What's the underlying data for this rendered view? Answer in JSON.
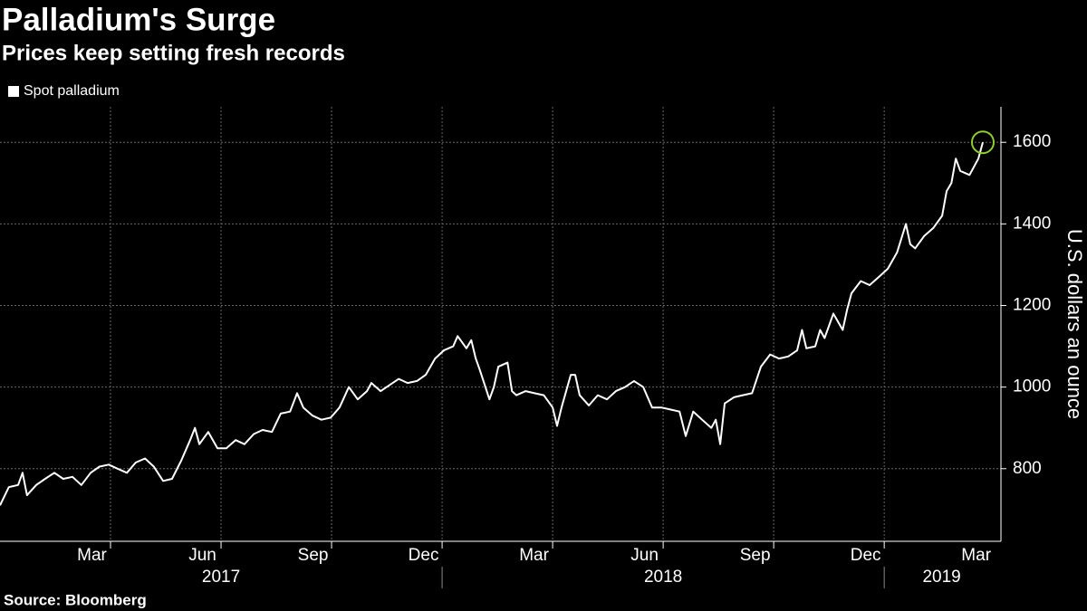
{
  "chart_data": {
    "type": "line",
    "title": "Palladium's Surge",
    "subtitle": "Prices keep setting fresh records",
    "y_axis_label": "U.S. dollars an ounce",
    "source": "Source: Bloomberg",
    "legend_position": "top-left",
    "grid": true,
    "marker_color": "#8fce2d",
    "xlim": [
      2017,
      2019.264
    ],
    "ylim": [
      622,
      1687
    ],
    "yticks": [
      800,
      1000,
      1200,
      1400,
      1600
    ],
    "xticks": [
      {
        "value": 2017.208,
        "label": "Mar"
      },
      {
        "value": 2017.458,
        "label": "Jun"
      },
      {
        "value": 2017.708,
        "label": "Sep"
      },
      {
        "value": 2017.958,
        "label": "Dec"
      },
      {
        "value": 2018.208,
        "label": "Mar"
      },
      {
        "value": 2018.458,
        "label": "Jun"
      },
      {
        "value": 2018.708,
        "label": "Sep"
      },
      {
        "value": 2018.958,
        "label": "Dec"
      },
      {
        "value": 2019.208,
        "label": "Mar"
      }
    ],
    "xgrid": [
      2017.25,
      2017.5,
      2017.75,
      2018,
      2018.25,
      2018.5,
      2018.75,
      2019
    ],
    "year_ticks": [
      {
        "value": 2017.5,
        "label": "2017"
      },
      {
        "value": 2018.5,
        "label": "2018"
      },
      {
        "value": 2019.13,
        "label": "2019"
      }
    ],
    "year_separators": [
      2018,
      2019
    ],
    "x": [
      2017.0,
      2017.02,
      2017.041,
      2017.051,
      2017.061,
      2017.082,
      2017.102,
      2017.123,
      2017.143,
      2017.164,
      2017.184,
      2017.205,
      2017.225,
      2017.246,
      2017.266,
      2017.287,
      2017.307,
      2017.328,
      2017.348,
      2017.369,
      2017.389,
      2017.41,
      2017.43,
      2017.441,
      2017.451,
      2017.471,
      2017.492,
      2017.512,
      2017.533,
      2017.553,
      2017.574,
      2017.594,
      2017.615,
      2017.635,
      2017.656,
      2017.672,
      2017.686,
      2017.707,
      2017.727,
      2017.748,
      2017.768,
      2017.789,
      2017.809,
      2017.83,
      2017.84,
      2017.861,
      2017.881,
      2017.902,
      2017.922,
      2017.943,
      2017.963,
      2017.984,
      2018.004,
      2018.025,
      2018.035,
      2018.055,
      2018.066,
      2018.076,
      2018.086,
      2018.107,
      2018.117,
      2018.127,
      2018.148,
      2018.158,
      2018.168,
      2018.189,
      2018.209,
      2018.23,
      2018.25,
      2018.26,
      2018.27,
      2018.291,
      2018.301,
      2018.311,
      2018.332,
      2018.352,
      2018.373,
      2018.393,
      2018.414,
      2018.434,
      2018.455,
      2018.475,
      2018.496,
      2018.516,
      2018.537,
      2018.551,
      2018.568,
      2018.588,
      2018.609,
      2018.619,
      2018.629,
      2018.639,
      2018.66,
      2018.68,
      2018.701,
      2018.721,
      2018.742,
      2018.762,
      2018.783,
      2018.803,
      2018.814,
      2018.824,
      2018.844,
      2018.855,
      2018.865,
      2018.885,
      2018.906,
      2018.916,
      2018.926,
      2018.947,
      2018.967,
      2018.988,
      2019.008,
      2019.029,
      2019.049,
      2019.059,
      2019.07,
      2019.09,
      2019.111,
      2019.131,
      2019.141,
      2019.152,
      2019.162,
      2019.172,
      2019.193,
      2019.213,
      2019.223
    ],
    "series": [
      {
        "name": "Spot palladium",
        "color": "#ffffff",
        "values": [
          710,
          755,
          760,
          790,
          735,
          760,
          775,
          790,
          775,
          780,
          760,
          790,
          805,
          810,
          800,
          790,
          815,
          825,
          805,
          770,
          775,
          820,
          870,
          900,
          860,
          890,
          850,
          850,
          870,
          860,
          885,
          895,
          890,
          935,
          940,
          985,
          950,
          930,
          920,
          925,
          950,
          1000,
          970,
          990,
          1010,
          990,
          1005,
          1020,
          1010,
          1015,
          1030,
          1070,
          1090,
          1100,
          1125,
          1095,
          1115,
          1070,
          1040,
          970,
          1000,
          1050,
          1060,
          990,
          980,
          990,
          985,
          980,
          950,
          905,
          950,
          1030,
          1030,
          980,
          955,
          980,
          970,
          990,
          1000,
          1015,
          1000,
          950,
          950,
          945,
          940,
          880,
          940,
          920,
          900,
          920,
          860,
          960,
          975,
          980,
          985,
          1050,
          1080,
          1070,
          1075,
          1090,
          1140,
          1095,
          1100,
          1140,
          1120,
          1180,
          1140,
          1190,
          1230,
          1260,
          1250,
          1270,
          1290,
          1330,
          1400,
          1350,
          1340,
          1370,
          1390,
          1420,
          1480,
          1500,
          1560,
          1530,
          1520,
          1560,
          1600
        ]
      }
    ]
  }
}
